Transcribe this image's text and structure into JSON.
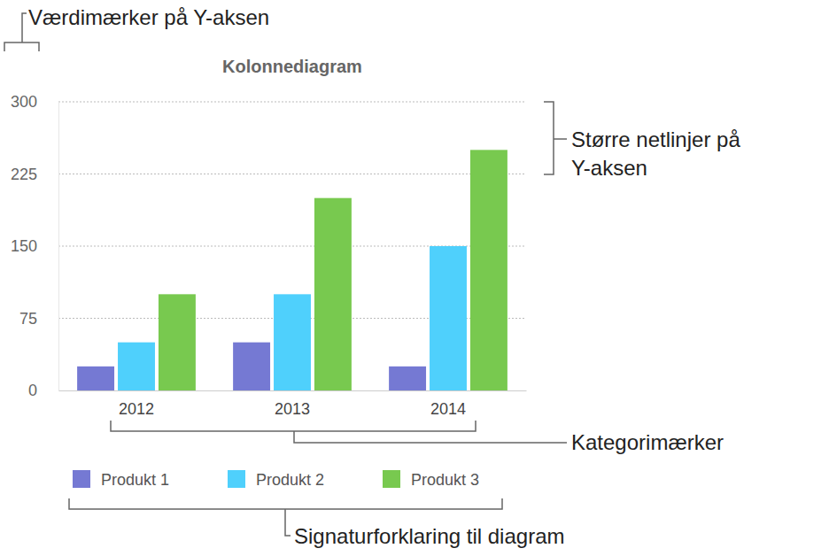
{
  "chart_data": {
    "type": "bar",
    "title": "Kolonnediagram",
    "categories": [
      "2012",
      "2013",
      "2014"
    ],
    "series": [
      {
        "name": "Produkt 1",
        "color": "#7579d3",
        "values": [
          25,
          50,
          25
        ]
      },
      {
        "name": "Produkt 2",
        "color": "#4fd0fc",
        "values": [
          50,
          100,
          150
        ]
      },
      {
        "name": "Produkt 3",
        "color": "#78c94f",
        "values": [
          100,
          200,
          250
        ]
      }
    ],
    "ylim": [
      0,
      300
    ],
    "yticks": [
      0,
      75,
      150,
      225,
      300
    ],
    "grid": true,
    "legend": "bottom",
    "annotations": [
      "Værdimærker på Y-aksen",
      "Større netlinjer på Y-aksen",
      "Kategorimærker",
      "Signaturforklaring til diagram"
    ]
  }
}
